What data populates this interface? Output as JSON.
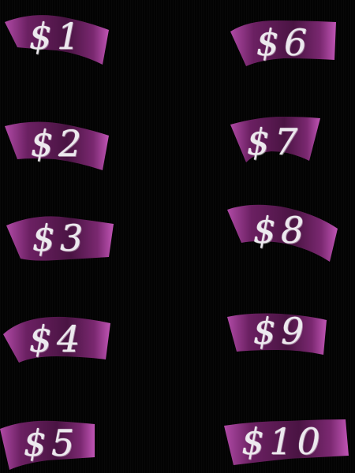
{
  "colors": {
    "background": "#000000",
    "ribbon_dark": "#3a0f34",
    "ribbon_mid": "#6b2062",
    "ribbon_edge": "#b04aa6",
    "chalk": "#ece9ee"
  },
  "buttons": [
    {
      "id": "one",
      "label": "$1"
    },
    {
      "id": "two",
      "label": "$2"
    },
    {
      "id": "three",
      "label": "$3"
    },
    {
      "id": "four",
      "label": "$4"
    },
    {
      "id": "five",
      "label": "$5"
    },
    {
      "id": "six",
      "label": "$6"
    },
    {
      "id": "seven",
      "label": "$7"
    },
    {
      "id": "eight",
      "label": "$8"
    },
    {
      "id": "nine",
      "label": "$9"
    },
    {
      "id": "ten",
      "label": "$10"
    }
  ]
}
